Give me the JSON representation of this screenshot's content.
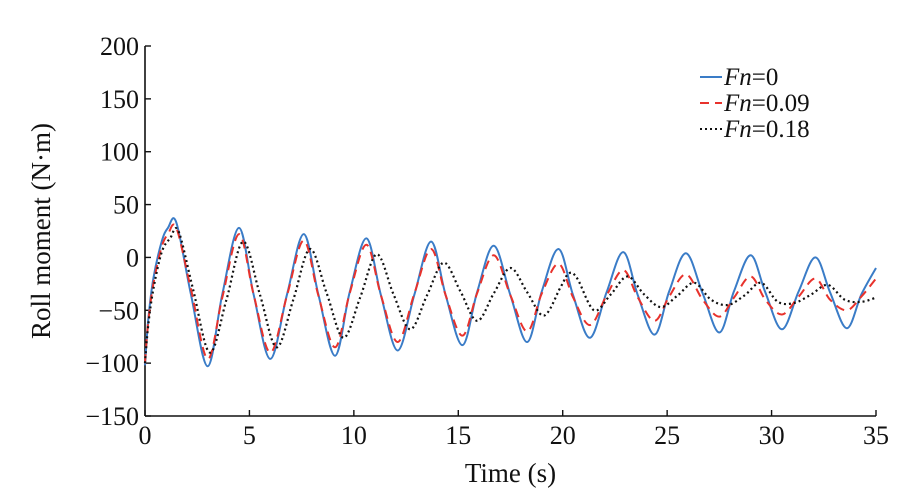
{
  "chart_data": {
    "type": "line",
    "xlabel": "Time (s)",
    "ylabel": "Roll moment (N·m)",
    "xlim": [
      0,
      35
    ],
    "ylim": [
      -150,
      200
    ],
    "xticks": [
      "0",
      "5",
      "10",
      "15",
      "20",
      "25",
      "30",
      "35"
    ],
    "yticks": [
      "−150",
      "−100",
      "−50",
      "0",
      "50",
      "100",
      "150",
      "200"
    ],
    "grid": false,
    "legend_position": "top-right",
    "series": [
      {
        "name_italic": "Fn",
        "name_rest": "=0",
        "color": "#3a7cc7",
        "style": "solid",
        "x": [
          0,
          0.15,
          0.4,
          0.8,
          1.1,
          1.5,
          2.2,
          3.0,
          3.7,
          4.5,
          5.2,
          6.0,
          6.8,
          7.6,
          8.3,
          9.1,
          9.8,
          10.6,
          11.3,
          12.1,
          12.9,
          13.7,
          14.4,
          15.2,
          15.9,
          16.7,
          17.5,
          18.3,
          19.0,
          19.8,
          20.5,
          21.3,
          22.1,
          22.9,
          23.6,
          24.4,
          25.1,
          25.9,
          26.7,
          27.5,
          28.2,
          29.0,
          29.7,
          30.5,
          31.3,
          32.1,
          32.8,
          33.6,
          34.3,
          35.0
        ],
        "y": [
          -102,
          -60,
          -20,
          15,
          28,
          33,
          -35,
          -103,
          -35,
          28,
          -35,
          -96,
          -35,
          22,
          -35,
          -93,
          -33,
          18,
          -36,
          -88,
          -35,
          15,
          -36,
          -83,
          -33,
          11,
          -36,
          -80,
          -32,
          8,
          -36,
          -76,
          -33,
          5,
          -36,
          -73,
          -32,
          4,
          -34,
          -71,
          -32,
          2,
          -33,
          -68,
          -32,
          0,
          -33,
          -67,
          -35,
          -10
        ]
      },
      {
        "name_italic": "Fn",
        "name_rest": "=0.09",
        "color": "#e8322c",
        "style": "dashed",
        "x": [
          0,
          0.15,
          0.4,
          0.8,
          1.1,
          1.5,
          2.2,
          3.0,
          3.7,
          4.5,
          5.2,
          6.0,
          6.8,
          7.6,
          8.3,
          9.1,
          9.8,
          10.6,
          11.3,
          12.1,
          12.9,
          13.7,
          14.4,
          15.2,
          15.9,
          16.7,
          17.5,
          18.3,
          19.0,
          19.8,
          20.5,
          21.3,
          22.1,
          22.9,
          23.6,
          24.4,
          25.1,
          25.9,
          26.7,
          27.5,
          28.2,
          29.0,
          29.7,
          30.5,
          31.3,
          32.1,
          32.8,
          33.6,
          34.3,
          35.0
        ],
        "y": [
          -100,
          -62,
          -25,
          10,
          22,
          28,
          -30,
          -96,
          -38,
          22,
          -35,
          -90,
          -36,
          16,
          -36,
          -85,
          -34,
          12,
          -36,
          -80,
          -34,
          8,
          -36,
          -74,
          -34,
          2,
          -36,
          -70,
          -34,
          -6,
          -38,
          -64,
          -36,
          -12,
          -38,
          -60,
          -37,
          -16,
          -40,
          -56,
          -38,
          -18,
          -40,
          -54,
          -37,
          -20,
          -40,
          -50,
          -37,
          -20
        ]
      },
      {
        "name_italic": "Fn",
        "name_rest": "=0.18",
        "color": "#111111",
        "style": "dotted",
        "x": [
          0,
          0.15,
          0.4,
          0.8,
          1.2,
          1.6,
          2.3,
          3.1,
          3.9,
          4.7,
          5.5,
          6.3,
          7.1,
          7.9,
          8.7,
          9.5,
          10.3,
          11.1,
          11.9,
          12.7,
          13.5,
          14.3,
          15.1,
          15.9,
          16.7,
          17.5,
          18.3,
          19.1,
          19.9,
          20.3,
          20.7,
          21.5,
          22.3,
          23.1,
          23.9,
          24.7,
          25.5,
          26.3,
          27.1,
          27.9,
          28.7,
          29.5,
          30.3,
          31.1,
          31.9,
          32.7,
          33.5,
          34.3,
          35.0
        ],
        "y": [
          -100,
          -65,
          -30,
          5,
          18,
          25,
          -30,
          -90,
          -40,
          15,
          -35,
          -85,
          -40,
          8,
          -34,
          -76,
          -38,
          3,
          -35,
          -68,
          -36,
          -5,
          -32,
          -60,
          -34,
          -10,
          -33,
          -55,
          -28,
          -15,
          -20,
          -50,
          -35,
          -18,
          -35,
          -47,
          -36,
          -24,
          -40,
          -45,
          -36,
          -24,
          -42,
          -43,
          -35,
          -26,
          -40,
          -42,
          -38
        ]
      }
    ]
  }
}
